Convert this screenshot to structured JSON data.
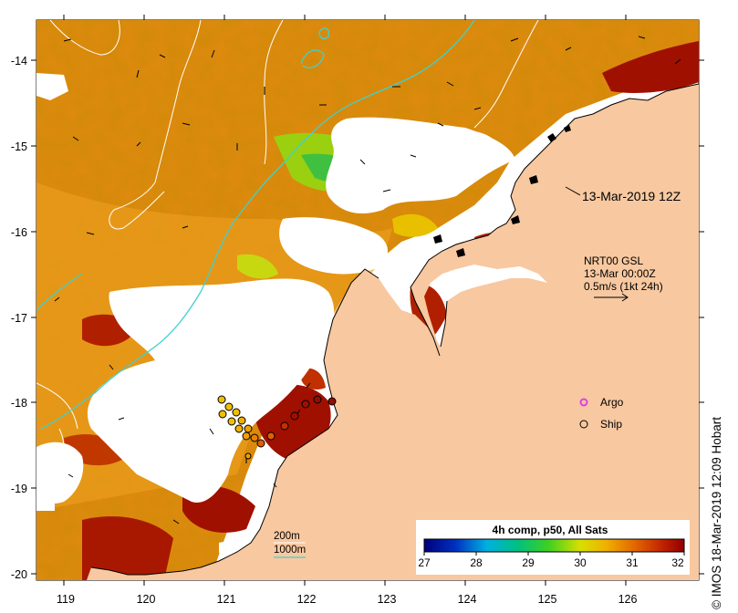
{
  "map": {
    "timestamp_label": "13-Mar-2019 12Z",
    "current_info": {
      "line1": "NRT00 GSL",
      "line2": "13-Mar 00:00Z",
      "line3": "0.5m/s (1kt 24h)"
    },
    "legend": {
      "argo_label": "Argo",
      "ship_label": "Ship"
    },
    "contour_legend": {
      "label_200": "200m",
      "label_1000": "1000m"
    },
    "colorbar": {
      "title": "4h comp, p50, All Sats",
      "ticks": [
        "27",
        "28",
        "29",
        "30",
        "31",
        "32"
      ]
    },
    "x_ticks": [
      "119",
      "120",
      "121",
      "122",
      "123",
      "124",
      "125",
      "126"
    ],
    "y_ticks": [
      "-14",
      "-15",
      "-16",
      "-17",
      "-18",
      "-19",
      "-20"
    ],
    "credit": "© IMOS 18-Mar-2019 12:09 Hobart",
    "colors": {
      "land": "#f8c8a0",
      "contour_200": "#ffffff",
      "contour_1000": "#40d0d0",
      "argo": "#e040e0"
    }
  }
}
